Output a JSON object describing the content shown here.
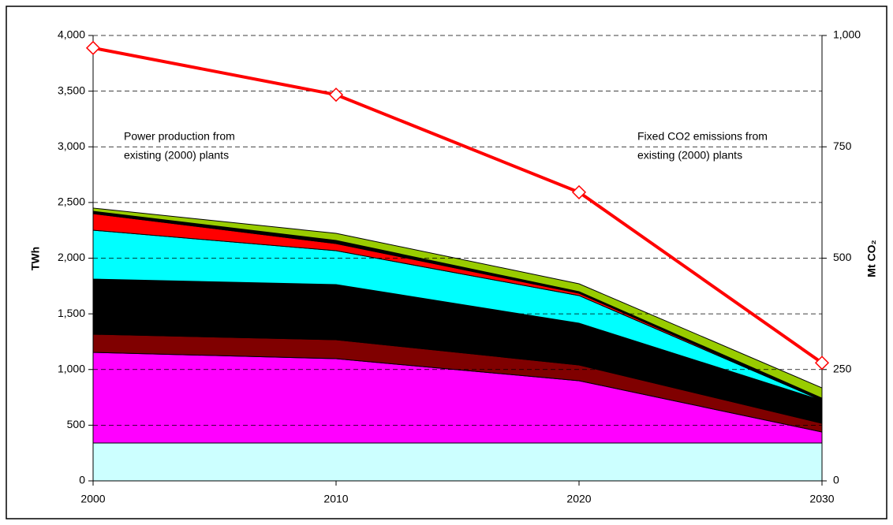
{
  "chart_data": {
    "type": "area",
    "x": [
      2000,
      2010,
      2020,
      2030
    ],
    "xlim": [
      2000,
      2030
    ],
    "xticks": [
      2000,
      2010,
      2020,
      2030
    ],
    "ylim": [
      0,
      4000
    ],
    "yticks": [
      0,
      500,
      {
        "value": 1000,
        "label": "1,000"
      },
      {
        "value": 1500,
        "label": "1,500"
      },
      {
        "value": 2000,
        "label": "2,000"
      },
      {
        "value": 2500,
        "label": "2,500"
      },
      {
        "value": 3000,
        "label": "3,000"
      },
      {
        "value": 3500,
        "label": "3,500"
      },
      {
        "value": 4000,
        "label": "4,000"
      }
    ],
    "y2lim": [
      0,
      1000
    ],
    "y2ticks": [
      0,
      250,
      500,
      750,
      {
        "value": 1000,
        "label": "1,000"
      }
    ],
    "ylabel": "TWh",
    "y2label": "Mt CO₂",
    "grid": true,
    "annotations": [
      [
        "Power production from",
        "existing (2000) plants"
      ],
      [
        "Fixed CO2 emissions from",
        "existing (2000) plants"
      ]
    ],
    "series": [
      {
        "color": "#ccffff",
        "values": [
          340,
          340,
          340,
          340
        ]
      },
      {
        "color": "#ff00ff",
        "values": [
          814,
          757,
          559,
          99
        ]
      },
      {
        "color": "#800000",
        "values": [
          163,
          170,
          142,
          78
        ]
      },
      {
        "color": "#000000",
        "values": [
          495,
          496,
          375,
          205
        ]
      },
      {
        "color": "#00ffff",
        "values": [
          439,
          304,
          248,
          0
        ]
      },
      {
        "color": "#ff0000",
        "values": [
          149,
          64,
          21,
          0
        ]
      },
      {
        "color": "#000000",
        "values": [
          21,
          28,
          14,
          21
        ]
      },
      {
        "color": "#99cc00",
        "values": [
          29,
          64,
          71,
          92
        ]
      },
      {
        "color": "#ff0000",
        "type": "line",
        "axis": "y2",
        "values": [
          972,
          867,
          648,
          265
        ]
      }
    ]
  }
}
